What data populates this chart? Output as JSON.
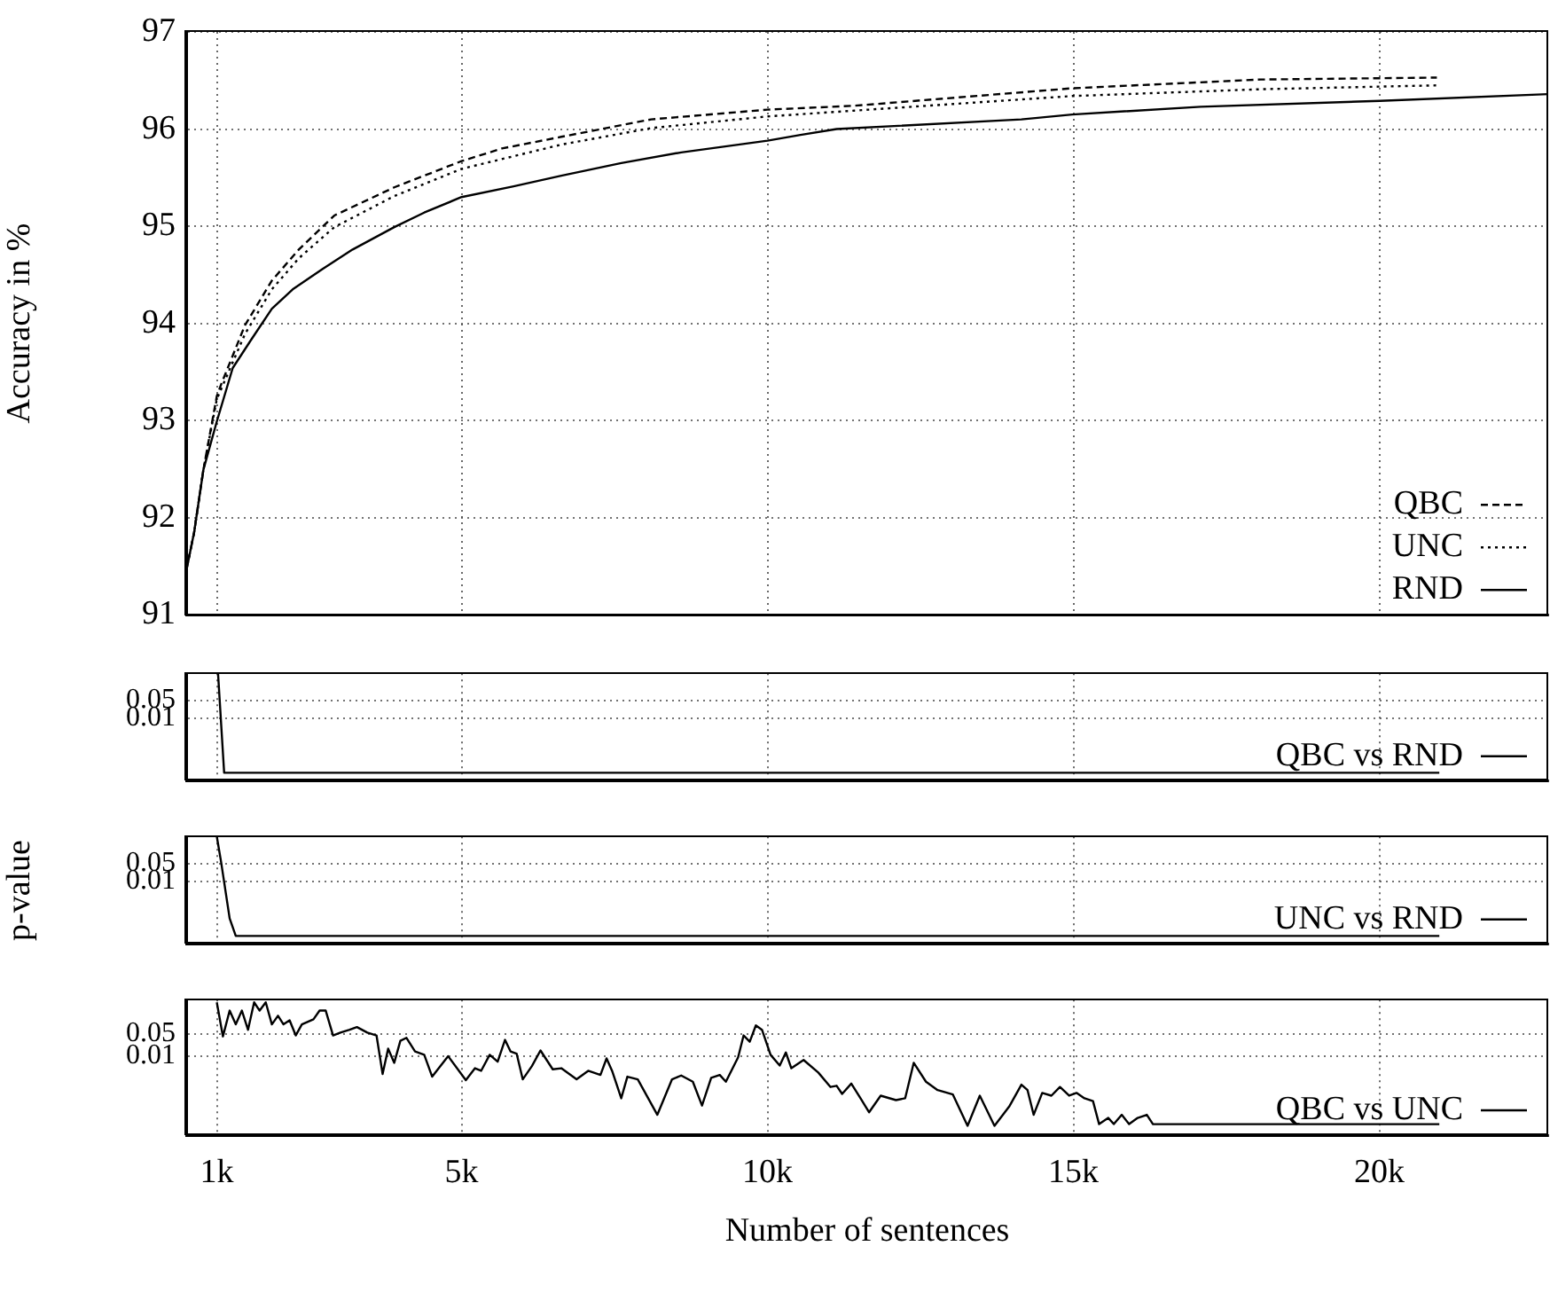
{
  "chart_data": [
    {
      "type": "line",
      "ylabel": "Accuracy in %",
      "xlim": [
        500,
        22760
      ],
      "xticks": [
        {
          "value": 1000,
          "label": null
        },
        {
          "value": 5000,
          "label": null
        },
        {
          "value": 10000,
          "label": null
        },
        {
          "value": 15000,
          "label": null
        },
        {
          "value": 20000,
          "label": null
        }
      ],
      "ylim": [
        91,
        97
      ],
      "yticks": [
        91,
        92,
        93,
        94,
        95,
        96,
        97
      ],
      "grid": true,
      "legend": "bottom right",
      "tick_labels": "y",
      "marker": "none",
      "series": [
        {
          "name": "QBC",
          "color": "#000000",
          "line_style": "dashed",
          "x": [
            500,
            630,
            780,
            1000,
            1070,
            1460,
            1900,
            2340,
            2920,
            3900,
            5000,
            5660,
            6630,
            8100,
            10000,
            11420,
            14980,
            18060,
            20940
          ],
          "values": [
            91.45,
            91.85,
            92.49,
            93.25,
            93.37,
            93.98,
            94.44,
            94.76,
            95.11,
            95.4,
            95.67,
            95.8,
            95.92,
            96.1,
            96.2,
            96.24,
            96.42,
            96.51,
            96.53
          ]
        },
        {
          "name": "UNC",
          "color": "#000000",
          "line_style": "dotted",
          "x": [
            500,
            630,
            780,
            1000,
            1460,
            1900,
            2340,
            2920,
            3900,
            5000,
            6630,
            8100,
            10000,
            11420,
            14980,
            18060,
            20940
          ],
          "values": [
            91.45,
            91.85,
            92.49,
            93.22,
            93.89,
            94.35,
            94.67,
            94.99,
            95.31,
            95.59,
            95.84,
            96.01,
            96.13,
            96.19,
            96.34,
            96.41,
            96.45
          ]
        },
        {
          "name": "RND",
          "color": "#000000",
          "line_style": "solid",
          "x": [
            500,
            630,
            780,
            1000,
            1260,
            1560,
            1900,
            2240,
            2730,
            3220,
            3900,
            4390,
            5000,
            5850,
            6630,
            7610,
            8590,
            10000,
            10540,
            11130,
            14150,
            14980,
            17080,
            20010,
            22760
          ],
          "values": [
            91.45,
            91.85,
            92.49,
            92.99,
            93.54,
            93.83,
            94.15,
            94.35,
            94.56,
            94.76,
            94.99,
            95.14,
            95.3,
            95.41,
            95.52,
            95.65,
            95.76,
            95.88,
            95.94,
            96.0,
            96.1,
            96.15,
            96.23,
            96.29,
            96.36
          ]
        }
      ]
    },
    {
      "type": "line",
      "xlim": [
        500,
        22760
      ],
      "xticks": [
        {
          "value": 1000,
          "label": null
        },
        {
          "value": 5000,
          "label": null
        },
        {
          "value": 10000,
          "label": null
        },
        {
          "value": 15000,
          "label": null
        },
        {
          "value": 20000,
          "label": null
        }
      ],
      "ylim": [
        3.5e-05,
        0.57
      ],
      "yticks": [
        0.05,
        0.01
      ],
      "log": true,
      "grid": true,
      "legend": "bottom right",
      "tick_labels": "y",
      "marker": "none",
      "series": [
        {
          "name": "QBC vs RND",
          "color": "#000000",
          "line_style": "solid",
          "x": [
            1020,
            1120,
            20980
          ],
          "values": [
            0.57,
            7.4e-05,
            7.4e-05
          ]
        }
      ]
    },
    {
      "type": "line",
      "ylabel": "p-value",
      "xlim": [
        500,
        22760
      ],
      "xticks": [
        {
          "value": 1000,
          "label": null
        },
        {
          "value": 5000,
          "label": null
        },
        {
          "value": 10000,
          "label": null
        },
        {
          "value": 15000,
          "label": null
        },
        {
          "value": 20000,
          "label": null
        }
      ],
      "ylim": [
        3.5e-05,
        0.57
      ],
      "yticks": [
        0.05,
        0.01
      ],
      "log": true,
      "grid": true,
      "legend": "bottom right",
      "tick_labels": "y",
      "marker": "none",
      "series": [
        {
          "name": "UNC vs RND",
          "color": "#000000",
          "line_style": "solid",
          "x": [
            1000,
            1070,
            1210,
            1310,
            20980
          ],
          "values": [
            0.57,
            0.058,
            0.00036,
            7.4e-05,
            7.4e-05
          ]
        }
      ]
    },
    {
      "type": "line",
      "xlabel": "Number of sentences",
      "xlim": [
        500,
        22760
      ],
      "xticks": [
        {
          "value": 1000,
          "label": "1k"
        },
        {
          "value": 5000,
          "label": "5k"
        },
        {
          "value": 10000,
          "label": "10k"
        },
        {
          "value": 15000,
          "label": "15k"
        },
        {
          "value": 20000,
          "label": "20k"
        }
      ],
      "ylim": [
        3.5e-05,
        0.57
      ],
      "yticks": [
        0.05,
        0.01
      ],
      "log": true,
      "grid": true,
      "legend": "bottom right",
      "marker": "none",
      "series": [
        {
          "name": "QBC vs UNC",
          "color": "#000000",
          "line_style": "solid",
          "x": [
            1000,
            1100,
            1210,
            1310,
            1410,
            1510,
            1610,
            1700,
            1800,
            1900,
            2000,
            2090,
            2190,
            2290,
            2390,
            2580,
            2680,
            2780,
            2900,
            3020,
            3170,
            3290,
            3460,
            3610,
            3710,
            3800,
            3900,
            4000,
            4100,
            4240,
            4390,
            4520,
            4780,
            5070,
            5220,
            5320,
            5460,
            5590,
            5710,
            5800,
            5900,
            6000,
            6150,
            6290,
            6490,
            6630,
            6880,
            7070,
            7270,
            7370,
            7460,
            7610,
            7710,
            7880,
            8200,
            8440,
            8590,
            8780,
            8930,
            9080,
            9220,
            9320,
            9520,
            9610,
            9710,
            9810,
            9910,
            10050,
            10200,
            10300,
            10390,
            10590,
            10830,
            11030,
            11130,
            11220,
            11370,
            11520,
            11660,
            11850,
            12100,
            12250,
            12390,
            12590,
            12780,
            13030,
            13270,
            13470,
            13710,
            13950,
            14150,
            14250,
            14350,
            14490,
            14640,
            14780,
            14930,
            15050,
            15180,
            15320,
            15420,
            15570,
            15660,
            15790,
            15910,
            16050,
            16200,
            16300,
            20980
          ],
          "values": [
            0.47,
            0.041,
            0.26,
            0.097,
            0.26,
            0.066,
            0.47,
            0.26,
            0.47,
            0.097,
            0.18,
            0.097,
            0.13,
            0.044,
            0.097,
            0.14,
            0.26,
            0.26,
            0.044,
            0.054,
            0.066,
            0.08,
            0.054,
            0.044,
            0.0028,
            0.017,
            0.0062,
            0.03,
            0.037,
            0.014,
            0.011,
            0.0023,
            0.01,
            0.0018,
            0.0042,
            0.0035,
            0.011,
            0.0067,
            0.032,
            0.014,
            0.012,
            0.0019,
            0.0049,
            0.015,
            0.0039,
            0.0042,
            0.0019,
            0.0035,
            0.0026,
            0.0085,
            0.0035,
            0.00049,
            0.0023,
            0.0019,
            0.00015,
            0.0019,
            0.0025,
            0.0016,
            0.00029,
            0.0021,
            0.0026,
            0.0016,
            0.0092,
            0.044,
            0.028,
            0.09,
            0.066,
            0.011,
            0.0051,
            0.013,
            0.0042,
            0.0076,
            0.0031,
            0.0011,
            0.0012,
            0.00067,
            0.0014,
            0.00049,
            0.00018,
            0.00059,
            0.00043,
            0.00049,
            0.0062,
            0.0016,
            0.00088,
            0.00064,
            6.8e-05,
            0.00059,
            6.8e-05,
            0.00027,
            0.0013,
            0.00088,
            0.00015,
            0.00072,
            0.00059,
            0.0011,
            0.00059,
            0.00072,
            0.00049,
            0.0004,
            7.7e-05,
            0.00012,
            7.7e-05,
            0.00015,
            7.7e-05,
            0.00012,
            0.00015,
            7.7e-05,
            7.7e-05
          ]
        }
      ]
    }
  ]
}
